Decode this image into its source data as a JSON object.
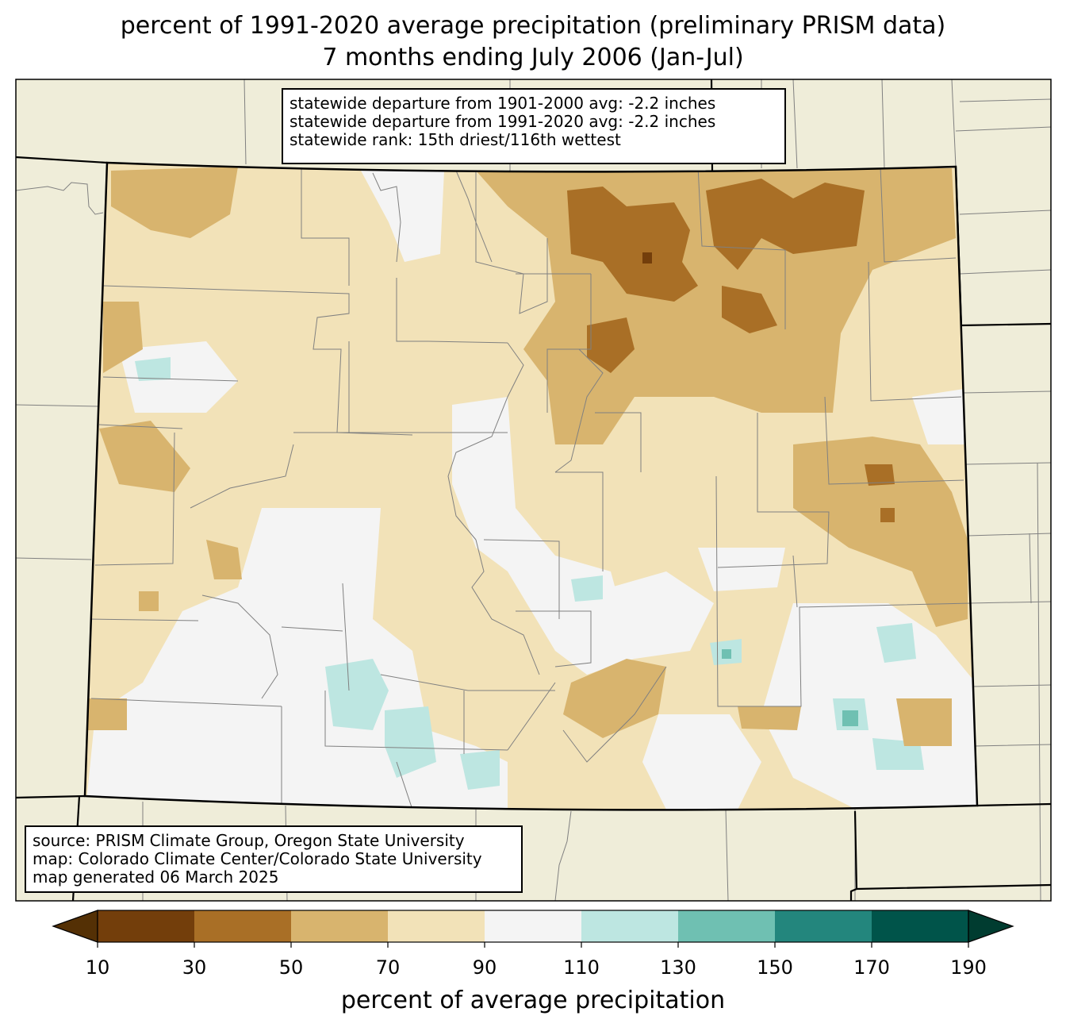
{
  "title": {
    "line1": "percent of 1991-2020 average precipitation (preliminary PRISM data)",
    "line2": "7 months ending July 2006 (Jan-Jul)"
  },
  "stats": {
    "line1": "statewide departure from 1901-2000 avg: -2.2 inches",
    "line2": "statewide departure from 1991-2020 avg: -2.2 inches",
    "line3": "statewide rank: 15th driest/116th wettest"
  },
  "credits": {
    "line1": "source: PRISM Climate Group, Oregon State University",
    "line2": "map: Colorado Climate Center/Colorado State University",
    "line3": "map generated 06 March 2025"
  },
  "colorbar": {
    "label": "percent of average precipitation",
    "ticks": [
      "10",
      "30",
      "50",
      "70",
      "90",
      "110",
      "130",
      "150",
      "170",
      "190"
    ],
    "colors": [
      "#733e0b",
      "#a96f26",
      "#d8b46e",
      "#f2e2b8",
      "#f4f4f4",
      "#bde6e1",
      "#6fc0b2",
      "#23867d",
      "#00544a"
    ],
    "under_color": "#543005",
    "over_color": "#003c30"
  },
  "colors": {
    "land_outside": "#efedd9",
    "border": "#000000",
    "county_lines": "#808080"
  }
}
